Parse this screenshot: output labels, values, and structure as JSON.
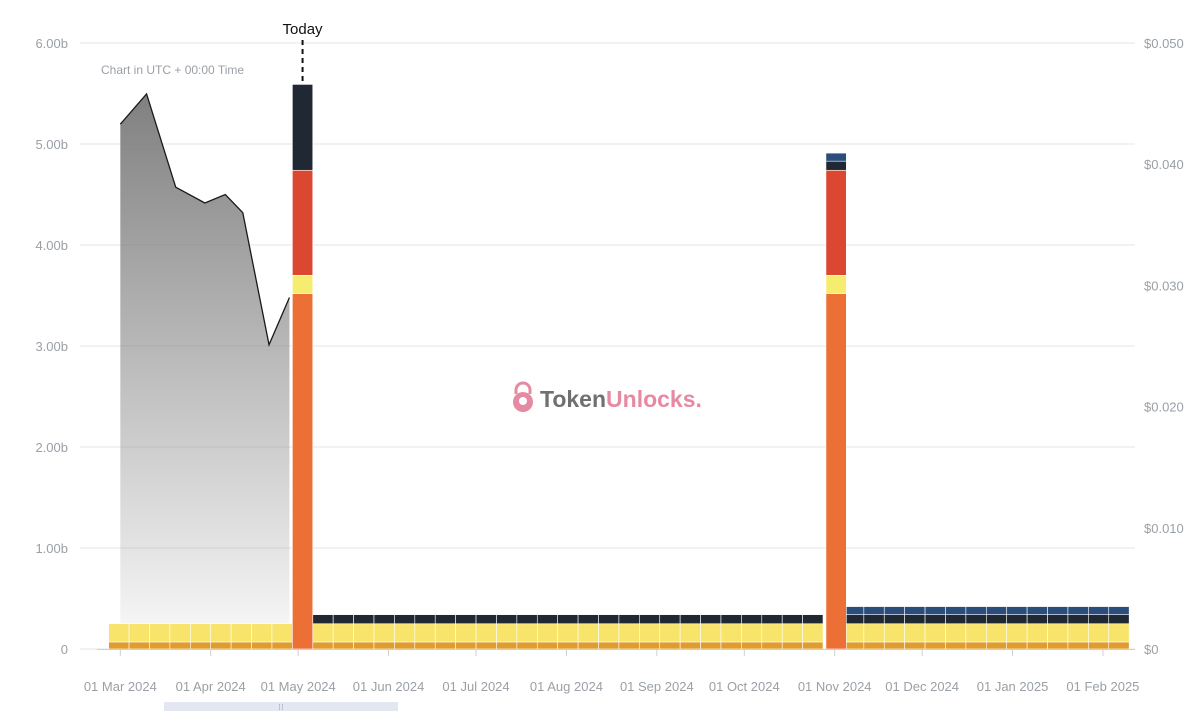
{
  "chart_data": {
    "type": "bar",
    "note": "Chart in UTC + 00:00 Time",
    "today_label": "Today",
    "today": "2024-04-29",
    "watermark": {
      "text_a": "Token",
      "text_b": "Unlocks",
      "text_dot": ".",
      "color_a": "#707070",
      "color_b": "#e68aa4",
      "icon": "padlock-icon"
    },
    "y_left": {
      "ticks": [
        "0",
        "1.00b",
        "2.00b",
        "3.00b",
        "4.00b",
        "5.00b",
        "6.00b"
      ],
      "ylim": [
        0,
        6000000000
      ]
    },
    "y_right": {
      "ticks": [
        "$0",
        "$0.010",
        "$0.020",
        "$0.030",
        "$0.040",
        "$0.050"
      ],
      "ylim": [
        0,
        0.05
      ]
    },
    "x_axis": {
      "range": [
        "2024-02-22",
        "2025-02-12"
      ],
      "labels": [
        {
          "date": "2024-03-01",
          "label": "01 Mar 2024"
        },
        {
          "date": "2024-04-01",
          "label": "01 Apr 2024"
        },
        {
          "date": "2024-05-01",
          "label": "01 May 2024"
        },
        {
          "date": "2024-06-01",
          "label": "01 Jun 2024"
        },
        {
          "date": "2024-07-01",
          "label": "01 Jul 2024"
        },
        {
          "date": "2024-08-01",
          "label": "01 Aug 2024"
        },
        {
          "date": "2024-09-01",
          "label": "01 Sep 2024"
        },
        {
          "date": "2024-10-01",
          "label": "01 Oct 2024"
        },
        {
          "date": "2024-11-01",
          "label": "01 Nov 2024"
        },
        {
          "date": "2024-12-01",
          "label": "01 Dec 2024"
        },
        {
          "date": "2025-01-01",
          "label": "01 Jan 2025"
        },
        {
          "date": "2025-02-01",
          "label": "01 Feb 2025"
        }
      ]
    },
    "colors": {
      "gold": "#e09c2d",
      "yellow": "#f8e46a",
      "orange": "#ec7035",
      "light_yellow": "#f6ec70",
      "red": "#db4730",
      "dark": "#1f2833",
      "blue": "#2a4d7c",
      "price_area": "#808080",
      "grid": "#e6e6e6"
    },
    "price_series": {
      "dates": [
        "2024-03-01",
        "2024-03-10",
        "2024-03-20",
        "2024-03-30",
        "2024-04-06",
        "2024-04-12",
        "2024-04-21",
        "2024-04-28"
      ],
      "values": [
        0.0433,
        0.0458,
        0.0381,
        0.0368,
        0.0375,
        0.036,
        0.0251,
        0.029
      ]
    },
    "bars": {
      "weekly_dates": [
        "2024-02-26",
        "2024-03-04",
        "2024-03-11",
        "2024-03-18",
        "2024-03-25",
        "2024-04-01",
        "2024-04-08",
        "2024-04-15",
        "2024-04-22",
        "2024-05-06",
        "2024-05-13",
        "2024-05-20",
        "2024-05-27",
        "2024-06-03",
        "2024-06-10",
        "2024-06-17",
        "2024-06-24",
        "2024-07-01",
        "2024-07-08",
        "2024-07-15",
        "2024-07-22",
        "2024-07-29",
        "2024-08-05",
        "2024-08-12",
        "2024-08-19",
        "2024-08-26",
        "2024-09-02",
        "2024-09-09",
        "2024-09-16",
        "2024-09-23",
        "2024-09-30",
        "2024-10-07",
        "2024-10-14",
        "2024-10-21",
        "2024-11-04",
        "2024-11-11",
        "2024-11-18",
        "2024-11-25",
        "2024-12-02",
        "2024-12-09",
        "2024-12-16",
        "2024-12-23",
        "2024-12-30",
        "2025-01-06",
        "2025-01-13",
        "2025-01-20",
        "2025-01-27",
        "2025-02-03"
      ],
      "weekly_stack_pre_may": [
        {
          "name": "gold",
          "value": 70000000
        },
        {
          "name": "yellow",
          "value": 180000000
        }
      ],
      "weekly_stack_may_oct": [
        {
          "name": "gold",
          "value": 70000000
        },
        {
          "name": "yellow",
          "value": 180000000
        },
        {
          "name": "dark",
          "value": 90000000
        }
      ],
      "weekly_stack_after_nov": [
        {
          "name": "gold",
          "value": 70000000
        },
        {
          "name": "yellow",
          "value": 180000000
        },
        {
          "name": "dark",
          "value": 90000000
        },
        {
          "name": "blue",
          "value": 80000000
        }
      ],
      "big": [
        {
          "date": "2024-04-29",
          "segments": [
            {
              "name": "orange",
              "value": 3520000000
            },
            {
              "name": "light_yellow",
              "value": 180000000
            },
            {
              "name": "red",
              "value": 1040000000
            },
            {
              "name": "dark",
              "value": 850000000
            }
          ]
        },
        {
          "date": "2024-10-29",
          "segments": [
            {
              "name": "orange",
              "value": 3520000000
            },
            {
              "name": "light_yellow",
              "value": 180000000
            },
            {
              "name": "red",
              "value": 1040000000
            },
            {
              "name": "dark",
              "value": 90000000
            },
            {
              "name": "blue",
              "value": 80000000
            }
          ]
        }
      ]
    }
  }
}
